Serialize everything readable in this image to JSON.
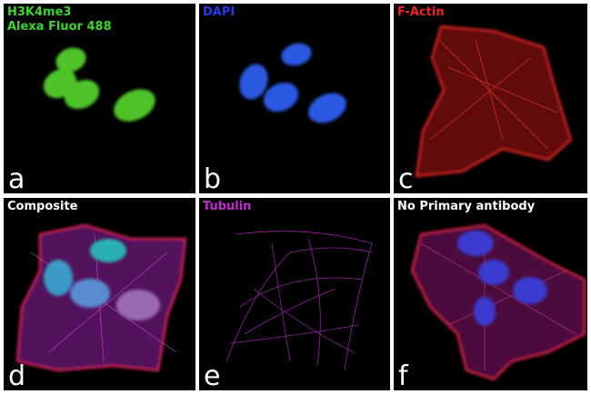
{
  "panels": [
    {
      "title_lines": [
        "H3K4me3",
        "Alexa Fluor 488"
      ],
      "letter": "a"
    },
    {
      "title_lines": [
        "DAPI"
      ],
      "letter": "b"
    },
    {
      "title_lines": [
        "F-Actin"
      ],
      "letter": "c"
    },
    {
      "title_lines": [
        "Composite"
      ],
      "letter": "d"
    },
    {
      "title_lines": [
        "Tubulin"
      ],
      "letter": "e"
    },
    {
      "title_lines": [
        "No Primary antibody"
      ],
      "letter": "f"
    }
  ]
}
